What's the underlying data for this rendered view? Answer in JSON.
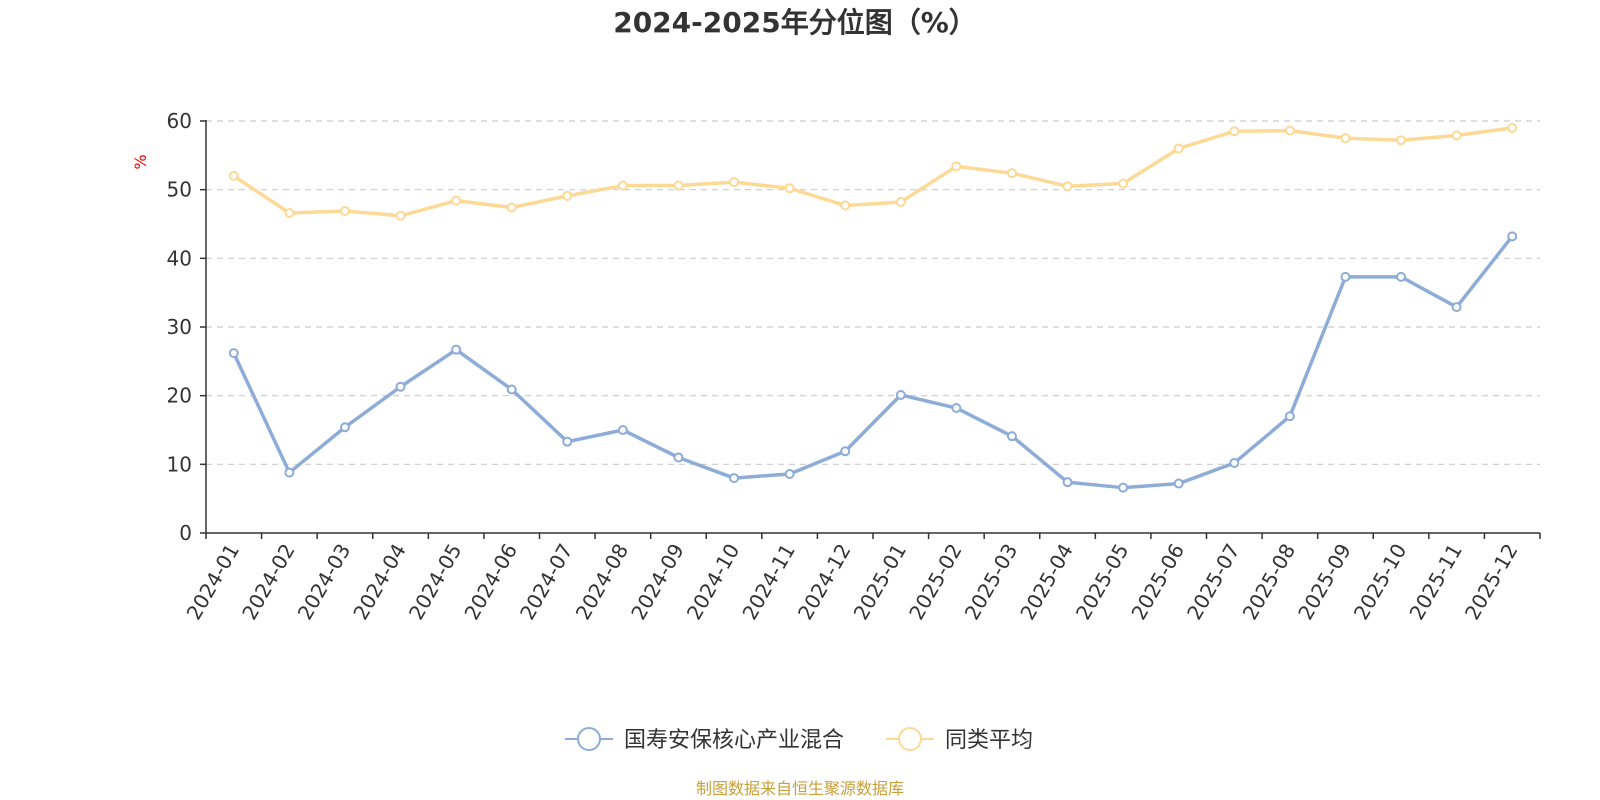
{
  "chart_data": {
    "type": "line",
    "title": "2024-2025年分位图（%）",
    "ylabel": "%",
    "ylim": [
      0,
      60
    ],
    "yticks": [
      0,
      10,
      20,
      30,
      40,
      50,
      60
    ],
    "grid": true,
    "categories": [
      "2024-01",
      "2024-02",
      "2024-03",
      "2024-04",
      "2024-05",
      "2024-06",
      "2024-07",
      "2024-08",
      "2024-09",
      "2024-10",
      "2024-11",
      "2024-12",
      "2025-01",
      "2025-02",
      "2025-03",
      "2025-04",
      "2025-05",
      "2025-06",
      "2025-07",
      "2025-08",
      "2025-09",
      "2025-10",
      "2025-11",
      "2025-12"
    ],
    "series": [
      {
        "name": "国寿安保核心产业混合",
        "color": "#8eacd8",
        "values": [
          26.2,
          8.8,
          15.4,
          21.3,
          26.7,
          20.9,
          13.3,
          15.0,
          11.0,
          8.0,
          8.6,
          11.9,
          20.1,
          18.2,
          14.1,
          7.4,
          6.6,
          7.2,
          10.2,
          17.0,
          37.3,
          37.3,
          32.9,
          43.2
        ]
      },
      {
        "name": "同类平均",
        "color": "#fdd996",
        "values": [
          52.0,
          46.6,
          46.9,
          46.2,
          48.4,
          47.4,
          49.1,
          50.6,
          50.6,
          51.1,
          50.2,
          47.7,
          48.2,
          53.4,
          52.4,
          50.5,
          50.9,
          56.0,
          58.5,
          58.6,
          57.5,
          57.2,
          57.9,
          59.0
        ]
      }
    ],
    "legend": "bottom-center",
    "source": "制图数据来自恒生聚源数据库"
  },
  "colors": {
    "axis": "#333333",
    "grid": "#cccccc",
    "ylabel": "#ff0000",
    "source": "#c8a03a"
  }
}
